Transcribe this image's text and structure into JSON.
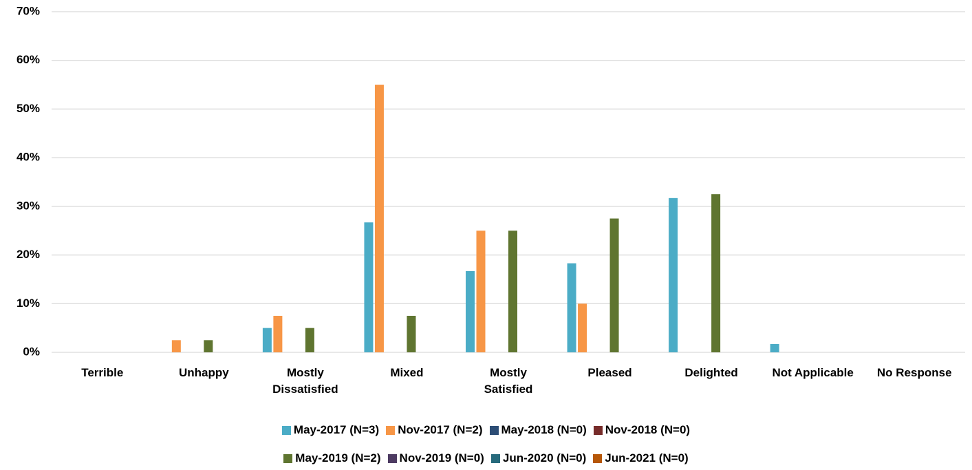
{
  "chart_data": {
    "type": "bar",
    "categories": [
      "Terrible",
      "Unhappy",
      "Mostly\nDissatisfied",
      "Mixed",
      "Mostly\nSatisfied",
      "Pleased",
      "Delighted",
      "Not Applicable",
      "No Response"
    ],
    "series": [
      {
        "name": "May-2017 (N=3)",
        "color": "#4bacc6",
        "values": [
          0,
          0,
          5,
          26.7,
          16.7,
          18.3,
          31.7,
          1.7,
          0
        ]
      },
      {
        "name": "Nov-2017 (N=2)",
        "color": "#f79646",
        "values": [
          0,
          2.5,
          7.5,
          55,
          25,
          10,
          0,
          0,
          0
        ]
      },
      {
        "name": "May-2018 (N=0)",
        "color": "#2c4d75",
        "values": [
          0,
          0,
          0,
          0,
          0,
          0,
          0,
          0,
          0
        ]
      },
      {
        "name": "Nov-2018 (N=0)",
        "color": "#772c2a",
        "values": [
          0,
          0,
          0,
          0,
          0,
          0,
          0,
          0,
          0
        ]
      },
      {
        "name": "May-2019 (N=2)",
        "color": "#5f7530",
        "values": [
          0,
          2.5,
          5,
          7.5,
          25,
          27.5,
          32.5,
          0,
          0
        ]
      },
      {
        "name": "Nov-2019 (N=0)",
        "color": "#4d3b62",
        "values": [
          0,
          0,
          0,
          0,
          0,
          0,
          0,
          0,
          0
        ]
      },
      {
        "name": "Jun-2020 (N=0)",
        "color": "#276a7c",
        "values": [
          0,
          0,
          0,
          0,
          0,
          0,
          0,
          0,
          0
        ]
      },
      {
        "name": "Jun-2021 (N=0)",
        "color": "#b65708",
        "values": [
          0,
          0,
          0,
          0,
          0,
          0,
          0,
          0,
          0
        ]
      }
    ],
    "ylim": [
      0,
      70
    ],
    "yticks": [
      {
        "value": 0,
        "label": "0%"
      },
      {
        "value": 10,
        "label": "10%"
      },
      {
        "value": 20,
        "label": "20%"
      },
      {
        "value": 30,
        "label": "30%"
      },
      {
        "value": 40,
        "label": "40%"
      },
      {
        "value": 50,
        "label": "50%"
      },
      {
        "value": 60,
        "label": "60%"
      },
      {
        "value": 70,
        "label": "70%"
      }
    ],
    "grid": true,
    "legend": "bottom"
  }
}
